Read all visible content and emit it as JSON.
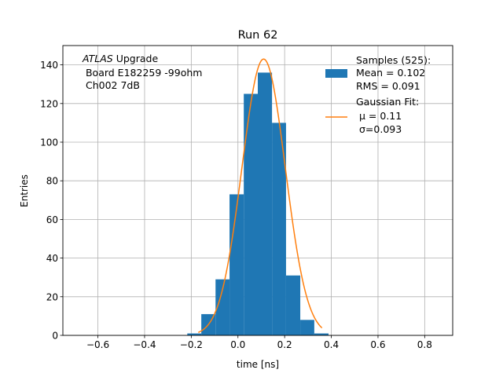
{
  "chart_data": {
    "type": "bar",
    "title": "Run 62",
    "xlabel": "time [ns]",
    "ylabel": "Entries",
    "xlim": [
      -0.75,
      0.92
    ],
    "ylim": [
      0,
      150
    ],
    "grid": true,
    "legend_position": "top-right",
    "xticks": [
      -0.6,
      -0.4,
      -0.2,
      0.0,
      0.2,
      0.4,
      0.6,
      0.8
    ],
    "xtick_labels": [
      "−0.6",
      "−0.4",
      "−0.2",
      "0.0",
      "0.2",
      "0.4",
      "0.6",
      "0.8"
    ],
    "yticks": [
      0,
      20,
      40,
      60,
      80,
      100,
      120,
      140
    ],
    "ytick_labels": [
      "0",
      "20",
      "40",
      "60",
      "80",
      "100",
      "120",
      "140"
    ],
    "annotation": {
      "italic": "ATLAS",
      "line1_rest": " Upgrade",
      "line2": " Board E182259 -99ohm",
      "line3": " Ch002 7dB"
    },
    "histogram": {
      "name": "Samples (525):",
      "color": "#1f77b4",
      "bin_edges": [
        -0.217,
        -0.157,
        -0.096,
        -0.036,
        0.025,
        0.085,
        0.146,
        0.206,
        0.267,
        0.327,
        0.388
      ],
      "counts": [
        1,
        11,
        29,
        73,
        125,
        136,
        110,
        31,
        8,
        1
      ],
      "stats": [
        "Mean = 0.102",
        "RMS = 0.091"
      ]
    },
    "fit": {
      "name": "Gaussian Fit:",
      "color": "#ff7f0e",
      "mu": 0.11,
      "sigma": 0.093,
      "amplitude": 143,
      "x_range": [
        -0.17,
        0.36
      ],
      "stats": [
        "μ = 0.11",
        "σ=0.093"
      ]
    }
  }
}
